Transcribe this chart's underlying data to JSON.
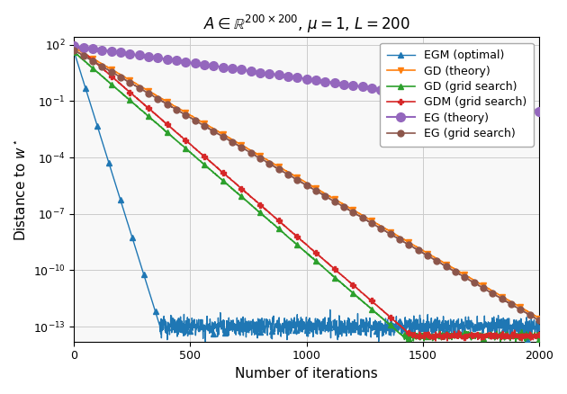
{
  "title": "$A \\in \\mathbb{R}^{200 \\times 200}$, $\\mu = 1$, $L = 200$",
  "xlabel": "Number of iterations",
  "ylabel": "Distance to $w^\\star$",
  "xlim": [
    0,
    2000
  ],
  "ylim_log": [
    -13.8,
    2.4
  ],
  "yticks_log": [
    2,
    -1,
    -4,
    -7,
    -10,
    -13
  ],
  "n_iter": 2001,
  "series": [
    {
      "label": "EGM (optimal)",
      "color": "#1f77b4",
      "marker": "^",
      "markevery": 50,
      "markersize": 4,
      "linewidth": 1.0,
      "y0_log": 1.65,
      "rate_per_iter": 0.055,
      "noise_floor_log": -13.0,
      "noise_scale": 0.25,
      "plateau_start": 370,
      "type": "fast_then_noisy"
    },
    {
      "label": "GD (theory)",
      "color": "#ff7f0e",
      "marker": "v",
      "markevery": 80,
      "markersize": 5,
      "linewidth": 1.2,
      "y0_log": 1.85,
      "rate_per_iter": 0.0072,
      "noise_floor_log": -13.0,
      "noise_scale": 0.08,
      "type": "linear_decay"
    },
    {
      "label": "GD (grid search)",
      "color": "#2ca02c",
      "marker": "^",
      "markevery": 80,
      "markersize": 5,
      "linewidth": 1.2,
      "y0_log": 1.62,
      "rate_per_iter": 0.0107,
      "noise_floor_log": -13.5,
      "noise_scale": 0.12,
      "type": "linear_decay"
    },
    {
      "label": "GDM (grid search)",
      "color": "#d62728",
      "marker": "P",
      "markevery": 80,
      "markersize": 5,
      "linewidth": 1.2,
      "y0_log": 2.05,
      "rate_per_iter": 0.0107,
      "noise_floor_log": -13.5,
      "noise_scale": 0.12,
      "type": "linear_decay"
    },
    {
      "label": "EG (theory)",
      "color": "#9467bd",
      "marker": "o",
      "markevery": 40,
      "markersize": 7,
      "linewidth": 1.5,
      "y0_log": 1.93,
      "rate_per_iter": 0.00175,
      "noise_floor_log": 99,
      "noise_scale": 0.0,
      "type": "slow_decay"
    },
    {
      "label": "EG (grid search)",
      "color": "#8c564b",
      "marker": "o",
      "markevery": 40,
      "markersize": 5,
      "linewidth": 1.2,
      "y0_log": 1.72,
      "rate_per_iter": 0.0072,
      "noise_floor_log": -13.3,
      "noise_scale": 0.08,
      "type": "linear_decay"
    }
  ],
  "background_color": "#f8f8f8",
  "grid_color": "#cccccc"
}
